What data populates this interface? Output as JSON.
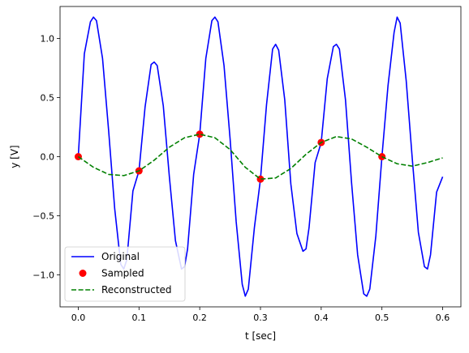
{
  "chart_data": {
    "type": "line",
    "title": "",
    "xlabel": "t [sec]",
    "ylabel": "y [V]",
    "xlim": [
      -0.03,
      0.63
    ],
    "ylim": [
      -1.27,
      1.27
    ],
    "xticks": [
      0.0,
      0.1,
      0.2,
      0.3,
      0.4,
      0.5,
      0.6
    ],
    "xtick_labels": [
      "0.0",
      "0.1",
      "0.2",
      "0.3",
      "0.4",
      "0.5",
      "0.6"
    ],
    "yticks": [
      -1.0,
      -0.5,
      0.0,
      0.5,
      1.0
    ],
    "ytick_labels": [
      "−1.0",
      "−0.5",
      "0.0",
      "0.5",
      "1.0"
    ],
    "grid": false,
    "legend_position": "lower left",
    "series": [
      {
        "name": "Original",
        "style": "solid line",
        "color": "#0000ff",
        "x": [
          0.0,
          0.01,
          0.02,
          0.025,
          0.03,
          0.04,
          0.05,
          0.06,
          0.07,
          0.075,
          0.08,
          0.09,
          0.1,
          0.11,
          0.12,
          0.125,
          0.13,
          0.14,
          0.15,
          0.16,
          0.17,
          0.175,
          0.18,
          0.19,
          0.2,
          0.21,
          0.22,
          0.225,
          0.23,
          0.24,
          0.25,
          0.26,
          0.27,
          0.275,
          0.28,
          0.29,
          0.3,
          0.31,
          0.32,
          0.325,
          0.33,
          0.34,
          0.35,
          0.36,
          0.37,
          0.375,
          0.38,
          0.39,
          0.4,
          0.41,
          0.42,
          0.425,
          0.43,
          0.44,
          0.45,
          0.46,
          0.47,
          0.475,
          0.48,
          0.49,
          0.5,
          0.51,
          0.52,
          0.525,
          0.53,
          0.54,
          0.55,
          0.56,
          0.57,
          0.575,
          0.58,
          0.59,
          0.6
        ],
        "y": [
          0.0,
          0.87,
          1.14,
          1.18,
          1.15,
          0.83,
          0.22,
          -0.44,
          -0.91,
          -0.95,
          -0.87,
          -0.29,
          -0.12,
          0.42,
          0.78,
          0.8,
          0.77,
          0.43,
          -0.17,
          -0.71,
          -0.95,
          -0.93,
          -0.78,
          -0.15,
          0.19,
          0.83,
          1.15,
          1.18,
          1.14,
          0.77,
          0.15,
          -0.55,
          -1.08,
          -1.18,
          -1.12,
          -0.6,
          -0.19,
          0.44,
          0.91,
          0.95,
          0.9,
          0.48,
          -0.23,
          -0.65,
          -0.8,
          -0.78,
          -0.6,
          -0.05,
          0.12,
          0.66,
          0.93,
          0.95,
          0.91,
          0.48,
          -0.22,
          -0.83,
          -1.16,
          -1.18,
          -1.12,
          -0.67,
          0.0,
          0.6,
          1.05,
          1.18,
          1.13,
          0.64,
          -0.02,
          -0.64,
          -0.93,
          -0.95,
          -0.83,
          -0.3,
          -0.17
        ]
      },
      {
        "name": "Sampled",
        "style": "markers",
        "color": "#ff0000",
        "x": [
          0.0,
          0.1,
          0.2,
          0.3,
          0.4,
          0.5
        ],
        "y": [
          0.0,
          -0.12,
          0.19,
          -0.19,
          0.12,
          0.0
        ]
      },
      {
        "name": "Reconstructed",
        "style": "dashed line",
        "color": "#008000",
        "x": [
          0.0,
          0.025,
          0.05,
          0.075,
          0.1,
          0.125,
          0.15,
          0.175,
          0.2,
          0.225,
          0.25,
          0.275,
          0.3,
          0.325,
          0.35,
          0.375,
          0.4,
          0.425,
          0.45,
          0.475,
          0.5,
          0.525,
          0.55,
          0.575,
          0.6
        ],
        "y": [
          0.0,
          -0.09,
          -0.15,
          -0.16,
          -0.12,
          -0.03,
          0.08,
          0.16,
          0.19,
          0.16,
          0.06,
          -0.09,
          -0.19,
          -0.18,
          -0.1,
          0.02,
          0.12,
          0.17,
          0.15,
          0.08,
          0.0,
          -0.06,
          -0.08,
          -0.05,
          -0.01
        ]
      }
    ]
  }
}
